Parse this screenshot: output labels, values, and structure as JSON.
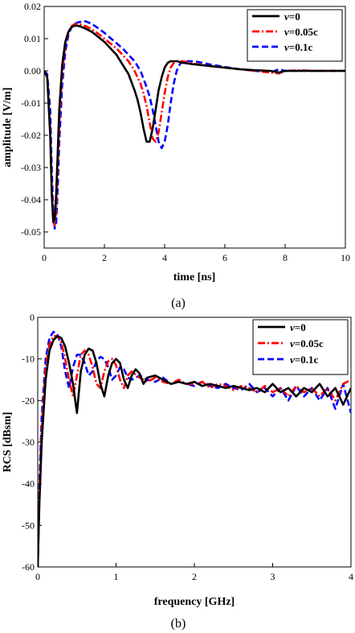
{
  "colors": {
    "v0": "#000000",
    "v005": "#ff0000",
    "v01": "#0000ff"
  },
  "chart_data": [
    {
      "type": "line",
      "caption": "(a)",
      "xlabel": "time [ns]",
      "ylabel": "amplitude [V/m]",
      "xlim": [
        0,
        10
      ],
      "ylim": [
        -0.055,
        0.02
      ],
      "xticks": [
        "0",
        "2",
        "4",
        "6",
        "8",
        "10"
      ],
      "yticks": [
        "-0.05",
        "-0.04",
        "-0.03",
        "-0.02",
        "-0.01",
        "0.00",
        "0.01",
        "0.02"
      ],
      "grid": false,
      "legend_position": "top-right",
      "series": [
        {
          "name": "v=0",
          "legend_italic": "v",
          "legend_rest": "=0",
          "color": "#000000",
          "dash": "solid",
          "x": [
            0,
            0.1,
            0.2,
            0.25,
            0.3,
            0.35,
            0.4,
            0.45,
            0.5,
            0.6,
            0.7,
            0.8,
            0.9,
            1.0,
            1.1,
            1.2,
            1.4,
            1.6,
            1.8,
            2.0,
            2.2,
            2.4,
            2.6,
            2.8,
            3.0,
            3.1,
            3.2,
            3.3,
            3.4,
            3.5,
            3.6,
            3.7,
            3.8,
            3.9,
            4.0,
            4.1,
            4.2,
            4.4,
            4.6,
            5.0,
            5.5,
            6.0,
            6.5,
            7.0,
            7.5,
            7.8,
            8.0,
            8.5,
            9.0,
            9.5,
            10.0
          ],
          "y": [
            0,
            -0.002,
            -0.02,
            -0.038,
            -0.047,
            -0.046,
            -0.038,
            -0.025,
            -0.012,
            0.002,
            0.009,
            0.012,
            0.0135,
            0.014,
            0.014,
            0.0138,
            0.013,
            0.012,
            0.0105,
            0.009,
            0.007,
            0.005,
            0.002,
            -0.001,
            -0.006,
            -0.009,
            -0.013,
            -0.018,
            -0.022,
            -0.022,
            -0.018,
            -0.012,
            -0.006,
            -0.002,
            0.001,
            0.0025,
            0.003,
            0.003,
            0.0025,
            0.002,
            0.0015,
            0.001,
            0.0005,
            0.0002,
            0,
            -0.0005,
            0,
            0,
            0,
            0,
            0
          ]
        },
        {
          "name": "v=0.05c",
          "legend_italic": "v",
          "legend_rest": "=0.05c",
          "color": "#ff0000",
          "dash": "dashdot",
          "x": [
            0,
            0.1,
            0.2,
            0.25,
            0.3,
            0.35,
            0.4,
            0.45,
            0.5,
            0.6,
            0.7,
            0.8,
            0.9,
            1.0,
            1.1,
            1.2,
            1.4,
            1.6,
            1.8,
            2.0,
            2.2,
            2.4,
            2.6,
            2.8,
            3.0,
            3.2,
            3.3,
            3.4,
            3.5,
            3.6,
            3.7,
            3.8,
            3.9,
            4.0,
            4.1,
            4.2,
            4.3,
            4.4,
            4.6,
            5.0,
            5.5,
            6.0,
            6.5,
            7.0,
            7.5,
            7.8,
            8.0,
            8.5,
            9.0,
            9.5,
            10.0
          ],
          "y": [
            0,
            -0.002,
            -0.018,
            -0.036,
            -0.046,
            -0.048,
            -0.043,
            -0.03,
            -0.016,
            0.0,
            0.008,
            0.012,
            0.0138,
            0.0145,
            0.0145,
            0.0144,
            0.0138,
            0.0128,
            0.0115,
            0.01,
            0.0085,
            0.007,
            0.005,
            0.003,
            0.0,
            -0.004,
            -0.007,
            -0.011,
            -0.016,
            -0.021,
            -0.022,
            -0.019,
            -0.013,
            -0.007,
            -0.002,
            0.001,
            0.0025,
            0.003,
            0.003,
            0.0022,
            0.0015,
            0.001,
            0.0005,
            0.0,
            -0.0005,
            -0.0008,
            0.0,
            0.0002,
            0.0,
            0.0,
            0.0
          ]
        },
        {
          "name": "v=0.1c",
          "legend_italic": "v",
          "legend_rest": "=0.1c",
          "color": "#0000ff",
          "dash": "dash",
          "x": [
            0,
            0.1,
            0.2,
            0.25,
            0.3,
            0.35,
            0.4,
            0.45,
            0.5,
            0.6,
            0.7,
            0.8,
            0.9,
            1.0,
            1.1,
            1.2,
            1.3,
            1.4,
            1.6,
            1.8,
            2.0,
            2.2,
            2.4,
            2.6,
            2.8,
            3.0,
            3.2,
            3.4,
            3.5,
            3.6,
            3.7,
            3.8,
            3.9,
            4.0,
            4.1,
            4.2,
            4.3,
            4.4,
            4.5,
            4.6,
            5.0,
            5.5,
            6.0,
            6.5,
            7.0,
            7.5,
            7.8,
            8.0,
            8.5,
            9.0,
            9.5,
            10.0
          ],
          "y": [
            0,
            -0.001,
            -0.012,
            -0.03,
            -0.044,
            -0.049,
            -0.047,
            -0.036,
            -0.022,
            -0.004,
            0.006,
            0.011,
            0.0135,
            0.0145,
            0.015,
            0.0152,
            0.0155,
            0.0153,
            0.0145,
            0.0132,
            0.0118,
            0.0102,
            0.0086,
            0.007,
            0.005,
            0.003,
            0.0,
            -0.005,
            -0.008,
            -0.012,
            -0.017,
            -0.022,
            -0.024,
            -0.022,
            -0.017,
            -0.01,
            -0.004,
            0.0,
            0.002,
            0.003,
            0.003,
            0.002,
            0.0012,
            0.0005,
            0.0,
            -0.0005,
            0.0005,
            0.0,
            0.0,
            0.0,
            0.0,
            0.0
          ]
        }
      ]
    },
    {
      "type": "line",
      "caption": "(b)",
      "xlabel": "frequency [GHz]",
      "ylabel": "RCS [dBsm]",
      "xlim": [
        0,
        4
      ],
      "ylim": [
        -60,
        0
      ],
      "xticks": [
        "0",
        "1",
        "2",
        "3",
        "4"
      ],
      "yticks": [
        "-60",
        "-50",
        "-40",
        "-30",
        "-20",
        "-10",
        "0"
      ],
      "grid": false,
      "legend_position": "top-right",
      "series": [
        {
          "name": "v=0",
          "legend_italic": "v",
          "legend_rest": "=0",
          "color": "#000000",
          "dash": "solid",
          "x": [
            0.0,
            0.02,
            0.05,
            0.1,
            0.15,
            0.2,
            0.25,
            0.3,
            0.35,
            0.4,
            0.45,
            0.5,
            0.55,
            0.6,
            0.65,
            0.7,
            0.75,
            0.8,
            0.85,
            0.9,
            0.95,
            1.0,
            1.05,
            1.1,
            1.15,
            1.2,
            1.25,
            1.3,
            1.35,
            1.4,
            1.5,
            1.6,
            1.7,
            1.8,
            1.9,
            2.0,
            2.1,
            2.2,
            2.3,
            2.4,
            2.5,
            2.6,
            2.7,
            2.8,
            2.9,
            3.0,
            3.1,
            3.2,
            3.3,
            3.4,
            3.5,
            3.6,
            3.7,
            3.8,
            3.9,
            4.0
          ],
          "y": [
            -60,
            -45,
            -30,
            -15,
            -8,
            -5.5,
            -4.5,
            -5,
            -7,
            -11,
            -16,
            -23,
            -13,
            -9,
            -7.5,
            -8,
            -11,
            -16,
            -19,
            -14,
            -11,
            -10,
            -11,
            -15,
            -17,
            -14,
            -12.5,
            -13.5,
            -16,
            -14.5,
            -14,
            -15,
            -16,
            -15.5,
            -16,
            -15.5,
            -16.5,
            -16,
            -16.5,
            -17,
            -16.5,
            -17,
            -17.5,
            -17,
            -18,
            -16,
            -18,
            -17,
            -19,
            -17,
            -18,
            -16,
            -19,
            -17,
            -21,
            -17
          ]
        },
        {
          "name": "v=0.05c",
          "legend_italic": "v",
          "legend_rest": "=0.05c",
          "color": "#ff0000",
          "dash": "dashdot",
          "x": [
            0.0,
            0.02,
            0.05,
            0.1,
            0.15,
            0.2,
            0.25,
            0.3,
            0.35,
            0.4,
            0.45,
            0.5,
            0.55,
            0.6,
            0.65,
            0.7,
            0.75,
            0.8,
            0.85,
            0.9,
            0.95,
            1.0,
            1.05,
            1.1,
            1.15,
            1.2,
            1.3,
            1.4,
            1.5,
            1.6,
            1.7,
            1.8,
            1.9,
            2.0,
            2.1,
            2.2,
            2.3,
            2.4,
            2.5,
            2.6,
            2.7,
            2.8,
            2.9,
            3.0,
            3.1,
            3.2,
            3.3,
            3.4,
            3.5,
            3.6,
            3.7,
            3.8,
            3.9,
            4.0
          ],
          "y": [
            -60,
            -42,
            -27,
            -12,
            -6.5,
            -4.5,
            -4.5,
            -6,
            -10,
            -15,
            -19,
            -14,
            -9,
            -8,
            -9,
            -12,
            -16,
            -17,
            -13,
            -10.5,
            -10,
            -11.5,
            -15,
            -17,
            -14,
            -13,
            -14.5,
            -15.5,
            -14.5,
            -15.5,
            -16,
            -15,
            -16,
            -16,
            -15.5,
            -17,
            -16,
            -16.5,
            -17.5,
            -16.5,
            -17,
            -18,
            -16.5,
            -18,
            -17,
            -19,
            -16.5,
            -18,
            -17,
            -19,
            -17,
            -20,
            -16,
            -15
          ]
        },
        {
          "name": "v=0.1c",
          "legend_italic": "v",
          "legend_rest": "=0.1c",
          "color": "#0000ff",
          "dash": "dash",
          "x": [
            0.0,
            0.02,
            0.05,
            0.1,
            0.15,
            0.2,
            0.25,
            0.3,
            0.35,
            0.4,
            0.45,
            0.5,
            0.55,
            0.6,
            0.65,
            0.7,
            0.75,
            0.8,
            0.85,
            0.9,
            0.95,
            1.0,
            1.05,
            1.1,
            1.15,
            1.2,
            1.3,
            1.4,
            1.5,
            1.6,
            1.7,
            1.8,
            1.9,
            2.0,
            2.1,
            2.2,
            2.3,
            2.4,
            2.5,
            2.6,
            2.7,
            2.8,
            2.9,
            3.0,
            3.1,
            3.2,
            3.3,
            3.4,
            3.5,
            3.6,
            3.7,
            3.8,
            3.9,
            4.0
          ],
          "y": [
            -60,
            -40,
            -24,
            -10,
            -5,
            -3.5,
            -4,
            -7,
            -13,
            -17,
            -12,
            -9,
            -9,
            -11,
            -14,
            -13,
            -10.5,
            -9.5,
            -10,
            -12,
            -15,
            -14,
            -12,
            -12.5,
            -14.5,
            -15,
            -14,
            -15,
            -15.5,
            -14.5,
            -16,
            -15.5,
            -16,
            -16.5,
            -15.5,
            -16.5,
            -17,
            -16,
            -17,
            -17.5,
            -16,
            -18,
            -17,
            -19,
            -17,
            -20,
            -16.5,
            -19,
            -17,
            -20,
            -17,
            -22,
            -16,
            -23
          ]
        }
      ]
    }
  ]
}
